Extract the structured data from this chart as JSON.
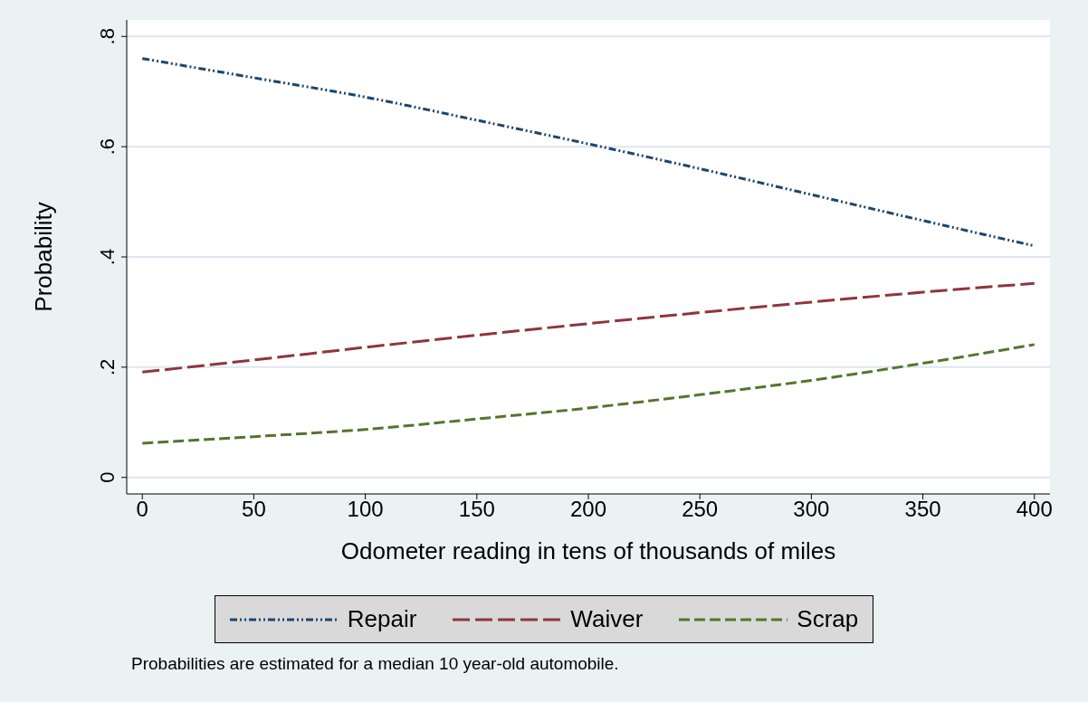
{
  "chart_data": {
    "type": "line",
    "xlabel": "Odometer reading in tens of thousands of miles",
    "ylabel": "Probability",
    "x": [
      0,
      50,
      100,
      150,
      200,
      250,
      300,
      350,
      400
    ],
    "series": [
      {
        "name": "Repair",
        "color": "#1a476f",
        "line_style": "dotted",
        "values": [
          0.76,
          0.725,
          0.69,
          0.648,
          0.605,
          0.56,
          0.513,
          0.466,
          0.42
        ]
      },
      {
        "name": "Waiver",
        "color": "#90353b",
        "line_style": "dashed",
        "values": [
          0.191,
          0.213,
          0.236,
          0.258,
          0.279,
          0.299,
          0.318,
          0.336,
          0.352
        ]
      },
      {
        "name": "Scrap",
        "color": "#55752f",
        "line_style": "dashed",
        "values": [
          0.062,
          0.074,
          0.087,
          0.106,
          0.126,
          0.15,
          0.176,
          0.207,
          0.241
        ]
      }
    ],
    "xlim": [
      -7,
      407
    ],
    "xticks": [
      0,
      50,
      100,
      150,
      200,
      250,
      300,
      350,
      400
    ],
    "ylim": [
      -0.03,
      0.83
    ],
    "yticks": [
      {
        "value": 0,
        "label": "0"
      },
      {
        "value": 0.2,
        "label": ".2"
      },
      {
        "value": 0.4,
        "label": ".4"
      },
      {
        "value": 0.6,
        "label": ".6"
      },
      {
        "value": 0.8,
        "label": ".8"
      }
    ],
    "grid": "y",
    "legend": "bottom",
    "marker": "none",
    "annotations": [
      "Probabilities are estimated for a median 10 year-old automobile."
    ]
  }
}
